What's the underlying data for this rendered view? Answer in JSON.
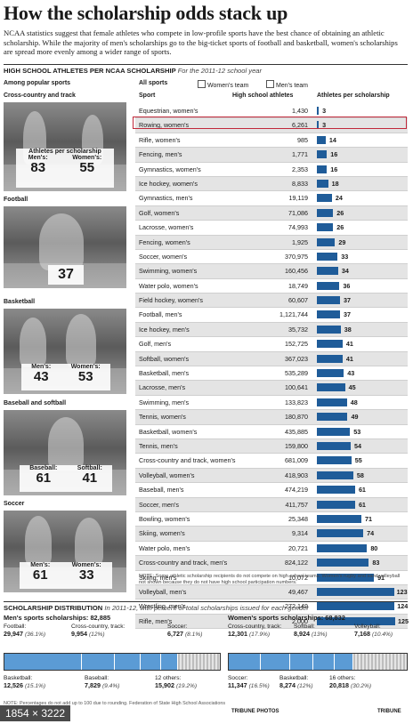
{
  "headline": "How the scholarship odds stack up",
  "intro": "NCAA statistics suggest that female athletes who compete in low-profile sports have the best chance of obtaining an athletic scholarship. While the majority of men's scholarships go to the big-ticket sports of football and basketball, women's scholarships are spread more evenly among a wider range of sports.",
  "section": {
    "title": "HIGH SCHOOL ATHLETES PER NCAA SCHOLARSHIP",
    "subtitle": "For the 2011-12 school year"
  },
  "left_header": "Among popular sports",
  "photos": [
    {
      "label": "Cross-country and track",
      "caption": "Athletes per scholarship",
      "stats": [
        {
          "label": "Men's:",
          "value": "83"
        },
        {
          "label": "Women's:",
          "value": "55"
        }
      ]
    },
    {
      "label": "Football",
      "caption": "",
      "stats": [
        {
          "label": "",
          "value": "37"
        }
      ]
    },
    {
      "label": "Basketball",
      "caption": "",
      "stats": [
        {
          "label": "Men's:",
          "value": "43"
        },
        {
          "label": "Women's:",
          "value": "53"
        }
      ]
    },
    {
      "label": "Baseball and softball",
      "caption": "",
      "stats": [
        {
          "label": "Baseball:",
          "value": "61"
        },
        {
          "label": "Softball:",
          "value": "41"
        }
      ]
    },
    {
      "label": "Soccer",
      "caption": "",
      "stats": [
        {
          "label": "Men's:",
          "value": "61"
        },
        {
          "label": "Women's:",
          "value": "33"
        }
      ]
    }
  ],
  "legend": {
    "all_sports": "All sports",
    "womens_team": "Women's team",
    "mens_team": "Men's team"
  },
  "columns": {
    "sport": "Sport",
    "athletes": "High school athletes",
    "aps": "Athletes per scholarship"
  },
  "chart_data": {
    "type": "bar",
    "title": "HIGH SCHOOL ATHLETES PER NCAA SCHOLARSHIP",
    "subtitle": "For the 2011-12 school year",
    "xlabel": "Athletes per scholarship",
    "xlim": [
      0,
      125
    ],
    "rows": [
      {
        "sport": "Equestrian, women's",
        "athletes": "1,430",
        "aps": 3
      },
      {
        "sport": "Rowing, women's",
        "athletes": "6,261",
        "aps": 3
      },
      {
        "sport": "Rifle, women's",
        "athletes": "985",
        "aps": 14
      },
      {
        "sport": "Fencing, men's",
        "athletes": "1,771",
        "aps": 16
      },
      {
        "sport": "Gymnastics, women's",
        "athletes": "2,353",
        "aps": 16
      },
      {
        "sport": "Ice hockey, women's",
        "athletes": "8,833",
        "aps": 18
      },
      {
        "sport": "Gymnastics, men's",
        "athletes": "19,119",
        "aps": 24
      },
      {
        "sport": "Golf, women's",
        "athletes": "71,086",
        "aps": 26
      },
      {
        "sport": "Lacrosse, women's",
        "athletes": "74,993",
        "aps": 26
      },
      {
        "sport": "Fencing, women's",
        "athletes": "1,925",
        "aps": 29
      },
      {
        "sport": "Soccer, women's",
        "athletes": "370,975",
        "aps": 33
      },
      {
        "sport": "Swimming, women's",
        "athletes": "160,456",
        "aps": 34
      },
      {
        "sport": "Water polo, women's",
        "athletes": "18,749",
        "aps": 36
      },
      {
        "sport": "Field hockey, women's",
        "athletes": "60,607",
        "aps": 37
      },
      {
        "sport": "Football, men's",
        "athletes": "1,121,744",
        "aps": 37
      },
      {
        "sport": "Ice hockey, men's",
        "athletes": "35,732",
        "aps": 38
      },
      {
        "sport": "Golf, men's",
        "athletes": "152,725",
        "aps": 41
      },
      {
        "sport": "Softball, women's",
        "athletes": "367,023",
        "aps": 41
      },
      {
        "sport": "Basketball, men's",
        "athletes": "535,289",
        "aps": 43
      },
      {
        "sport": "Lacrosse, men's",
        "athletes": "100,641",
        "aps": 45
      },
      {
        "sport": "Swimming, men's",
        "athletes": "133,823",
        "aps": 48
      },
      {
        "sport": "Tennis, women's",
        "athletes": "180,870",
        "aps": 49
      },
      {
        "sport": "Basketball, women's",
        "athletes": "435,885",
        "aps": 53
      },
      {
        "sport": "Tennis, men's",
        "athletes": "159,800",
        "aps": 54
      },
      {
        "sport": "Cross-country and track, women's",
        "athletes": "681,009",
        "aps": 55
      },
      {
        "sport": "Volleyball, women's",
        "athletes": "418,903",
        "aps": 58
      },
      {
        "sport": "Baseball, men's",
        "athletes": "474,219",
        "aps": 61
      },
      {
        "sport": "Soccer, men's",
        "athletes": "411,757",
        "aps": 61
      },
      {
        "sport": "Bowling, women's",
        "athletes": "25,348",
        "aps": 71
      },
      {
        "sport": "Skiing, women's",
        "athletes": "9,314",
        "aps": 74
      },
      {
        "sport": "Water polo, men's",
        "athletes": "20,721",
        "aps": 80
      },
      {
        "sport": "Cross-country and track, men's",
        "athletes": "824,122",
        "aps": 83
      },
      {
        "sport": "Skiing, men's",
        "athletes": "10,072",
        "aps": 91
      },
      {
        "sport": "Volleyball, men's",
        "athletes": "49,467",
        "aps": 123
      },
      {
        "sport": "Wrestling, men's",
        "athletes": "272,149",
        "aps": 124
      },
      {
        "sport": "Rifle, men's",
        "athletes": "2,000",
        "aps": 125
      }
    ],
    "highlighted": "Rowing, women's",
    "bar_color": "#1f5c99"
  },
  "note": "NOTE: Some athletic scholarship recipients do not compete on high school teams. Women's rugby and sand volleyball not shown because they do not have high school participation numbers.",
  "distribution": {
    "title": "SCHOLARSHIP DISTRIBUTION",
    "subtitle": "In 2011-12, with percent of total scholarships issued for each gender",
    "mens": {
      "heading": "Men's sports scholarships: 82,885",
      "segments": [
        {
          "label": "Football:",
          "value": "29,947",
          "pct": "(36.1%)",
          "share": 36.1
        },
        {
          "label": "Basketball:",
          "value": "12,526",
          "pct": "(15.1%)",
          "share": 15.1
        },
        {
          "label": "Cross-country, track:",
          "value": "9,954",
          "pct": "(12%)",
          "share": 12
        },
        {
          "label": "Baseball:",
          "value": "7,829",
          "pct": "(9.4%)",
          "share": 9.4
        },
        {
          "label": "Soccer:",
          "value": "6,727",
          "pct": "(8.1%)",
          "share": 8.1
        },
        {
          "label": "12 others:",
          "value": "15,902",
          "pct": "(19.2%)",
          "share": 19.2
        }
      ]
    },
    "womens": {
      "heading": "Women's sports scholarships: 68,832",
      "segments": [
        {
          "label": "Cross-country, track:",
          "value": "12,301",
          "pct": "(17.9%)",
          "share": 17.9
        },
        {
          "label": "Soccer:",
          "value": "11,347",
          "pct": "(16.5%)",
          "share": 16.5
        },
        {
          "label": "Softball:",
          "value": "8,924",
          "pct": "(13%)",
          "share": 13
        },
        {
          "label": "Basketball:",
          "value": "8,274",
          "pct": "(12%)",
          "share": 12
        },
        {
          "label": "Volleyball:",
          "value": "7,168",
          "pct": "(10.4%)",
          "share": 10.4
        },
        {
          "label": "16 others:",
          "value": "20,818",
          "pct": "(30.2%)",
          "share": 30.2
        }
      ]
    },
    "segment_color": "#5b9bd5"
  },
  "footnote": "NOTE: Percentages do not add up to 100 due to rounding.",
  "footnote_source": "Federation of State High School Associations",
  "credits": {
    "photos": "TRIBUNE PHOTOS",
    "paper": "TRIBUNE"
  },
  "image_size_badge": "1854 × 3222"
}
